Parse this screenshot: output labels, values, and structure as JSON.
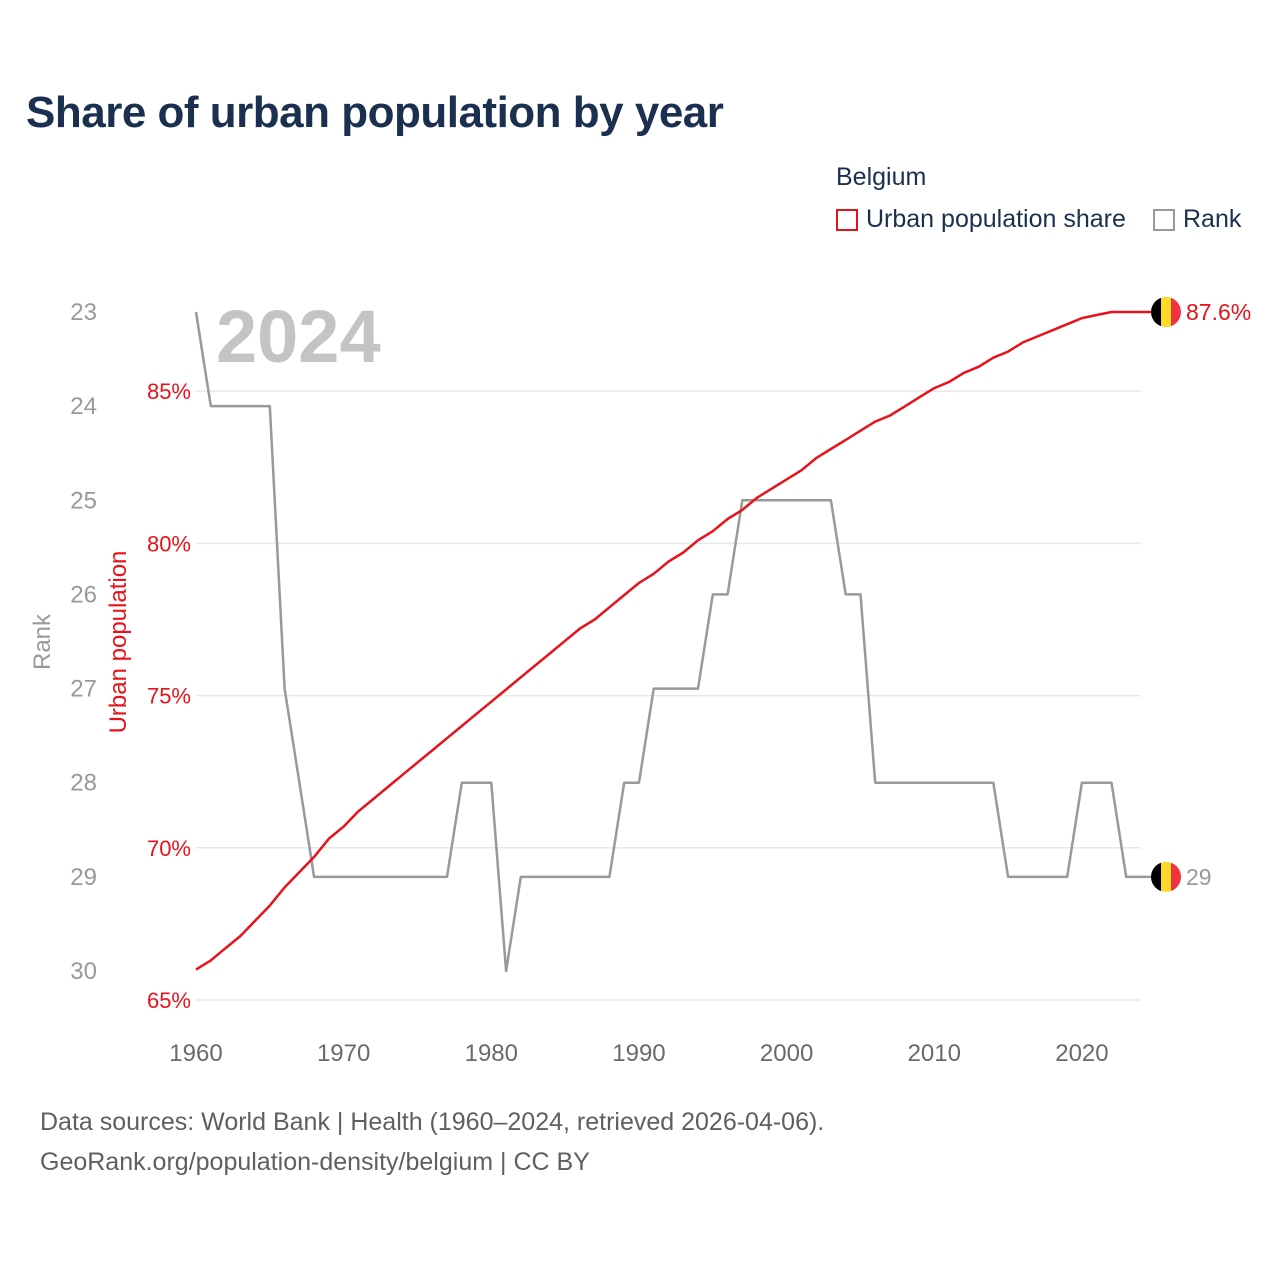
{
  "title": "Share of urban population by year",
  "legend": {
    "group": "Belgium",
    "urban_label": "Urban population share",
    "rank_label": "Rank"
  },
  "colors": {
    "urban": "#e8121a",
    "rank": "#999999",
    "title": "#1b2f4e"
  },
  "footer": {
    "line1": "Data sources: World Bank | Health (1960–2024, retrieved 2026-04-06).",
    "line2": "GeoRank.org/population-density/belgium | CC BY"
  },
  "chart_data": {
    "type": "line",
    "title": "Share of urban population by year",
    "year_label": "2024",
    "xlabel": "",
    "xlim": [
      1960,
      2024
    ],
    "x_ticks": [
      1960,
      1970,
      1980,
      1990,
      2000,
      2010,
      2020
    ],
    "y_left": {
      "label": "Rank",
      "ylim": [
        23,
        30
      ],
      "ticks": [
        23,
        24,
        25,
        26,
        27,
        28,
        29,
        30
      ],
      "inverted": true
    },
    "y_right": {
      "label": "Urban population",
      "ylim": [
        65,
        87.6
      ],
      "ticks": [
        65,
        70,
        75,
        80,
        85
      ],
      "tick_labels": [
        "65%",
        "70%",
        "75%",
        "80%",
        "85%"
      ]
    },
    "grid": true,
    "legend_position": "top-right",
    "series": [
      {
        "name": "Urban population share",
        "axis": "right",
        "end_label": "87.6%",
        "values": [
          [
            1960,
            66.0
          ],
          [
            1961,
            66.3
          ],
          [
            1962,
            66.7
          ],
          [
            1963,
            67.1
          ],
          [
            1964,
            67.6
          ],
          [
            1965,
            68.1
          ],
          [
            1966,
            68.7
          ],
          [
            1967,
            69.2
          ],
          [
            1968,
            69.7
          ],
          [
            1969,
            70.3
          ],
          [
            1970,
            70.7
          ],
          [
            1971,
            71.2
          ],
          [
            1972,
            71.6
          ],
          [
            1973,
            72.0
          ],
          [
            1974,
            72.4
          ],
          [
            1975,
            72.8
          ],
          [
            1976,
            73.2
          ],
          [
            1977,
            73.6
          ],
          [
            1978,
            74.0
          ],
          [
            1979,
            74.4
          ],
          [
            1980,
            74.8
          ],
          [
            1981,
            75.2
          ],
          [
            1982,
            75.6
          ],
          [
            1983,
            76.0
          ],
          [
            1984,
            76.4
          ],
          [
            1985,
            76.8
          ],
          [
            1986,
            77.2
          ],
          [
            1987,
            77.5
          ],
          [
            1988,
            77.9
          ],
          [
            1989,
            78.3
          ],
          [
            1990,
            78.7
          ],
          [
            1991,
            79.0
          ],
          [
            1992,
            79.4
          ],
          [
            1993,
            79.7
          ],
          [
            1994,
            80.1
          ],
          [
            1995,
            80.4
          ],
          [
            1996,
            80.8
          ],
          [
            1997,
            81.1
          ],
          [
            1998,
            81.5
          ],
          [
            1999,
            81.8
          ],
          [
            2000,
            82.1
          ],
          [
            2001,
            82.4
          ],
          [
            2002,
            82.8
          ],
          [
            2003,
            83.1
          ],
          [
            2004,
            83.4
          ],
          [
            2005,
            83.7
          ],
          [
            2006,
            84.0
          ],
          [
            2007,
            84.2
          ],
          [
            2008,
            84.5
          ],
          [
            2009,
            84.8
          ],
          [
            2010,
            85.1
          ],
          [
            2011,
            85.3
          ],
          [
            2012,
            85.6
          ],
          [
            2013,
            85.8
          ],
          [
            2014,
            86.1
          ],
          [
            2015,
            86.3
          ],
          [
            2016,
            86.6
          ],
          [
            2017,
            86.8
          ],
          [
            2018,
            87.0
          ],
          [
            2019,
            87.2
          ],
          [
            2020,
            87.4
          ],
          [
            2021,
            87.5
          ],
          [
            2022,
            87.6
          ],
          [
            2023,
            87.6
          ],
          [
            2024,
            87.6
          ]
        ]
      },
      {
        "name": "Rank",
        "axis": "left",
        "end_label": "29",
        "values": [
          [
            1960,
            23
          ],
          [
            1961,
            24
          ],
          [
            1962,
            24
          ],
          [
            1963,
            24
          ],
          [
            1964,
            24
          ],
          [
            1965,
            24
          ],
          [
            1966,
            27
          ],
          [
            1967,
            28
          ],
          [
            1968,
            29
          ],
          [
            1969,
            29
          ],
          [
            1970,
            29
          ],
          [
            1971,
            29
          ],
          [
            1972,
            29
          ],
          [
            1973,
            29
          ],
          [
            1974,
            29
          ],
          [
            1975,
            29
          ],
          [
            1976,
            29
          ],
          [
            1977,
            29
          ],
          [
            1978,
            28
          ],
          [
            1979,
            28
          ],
          [
            1980,
            28
          ],
          [
            1981,
            30
          ],
          [
            1982,
            29
          ],
          [
            1983,
            29
          ],
          [
            1984,
            29
          ],
          [
            1985,
            29
          ],
          [
            1986,
            29
          ],
          [
            1987,
            29
          ],
          [
            1988,
            29
          ],
          [
            1989,
            28
          ],
          [
            1990,
            28
          ],
          [
            1991,
            27
          ],
          [
            1992,
            27
          ],
          [
            1993,
            27
          ],
          [
            1994,
            27
          ],
          [
            1995,
            26
          ],
          [
            1996,
            26
          ],
          [
            1997,
            25
          ],
          [
            1998,
            25
          ],
          [
            1999,
            25
          ],
          [
            2000,
            25
          ],
          [
            2001,
            25
          ],
          [
            2002,
            25
          ],
          [
            2003,
            25
          ],
          [
            2004,
            26
          ],
          [
            2005,
            26
          ],
          [
            2006,
            28
          ],
          [
            2007,
            28
          ],
          [
            2008,
            28
          ],
          [
            2009,
            28
          ],
          [
            2010,
            28
          ],
          [
            2011,
            28
          ],
          [
            2012,
            28
          ],
          [
            2013,
            28
          ],
          [
            2014,
            28
          ],
          [
            2015,
            29
          ],
          [
            2016,
            29
          ],
          [
            2017,
            29
          ],
          [
            2018,
            29
          ],
          [
            2019,
            29
          ],
          [
            2020,
            28
          ],
          [
            2021,
            28
          ],
          [
            2022,
            28
          ],
          [
            2023,
            29
          ],
          [
            2024,
            29
          ]
        ]
      }
    ]
  }
}
